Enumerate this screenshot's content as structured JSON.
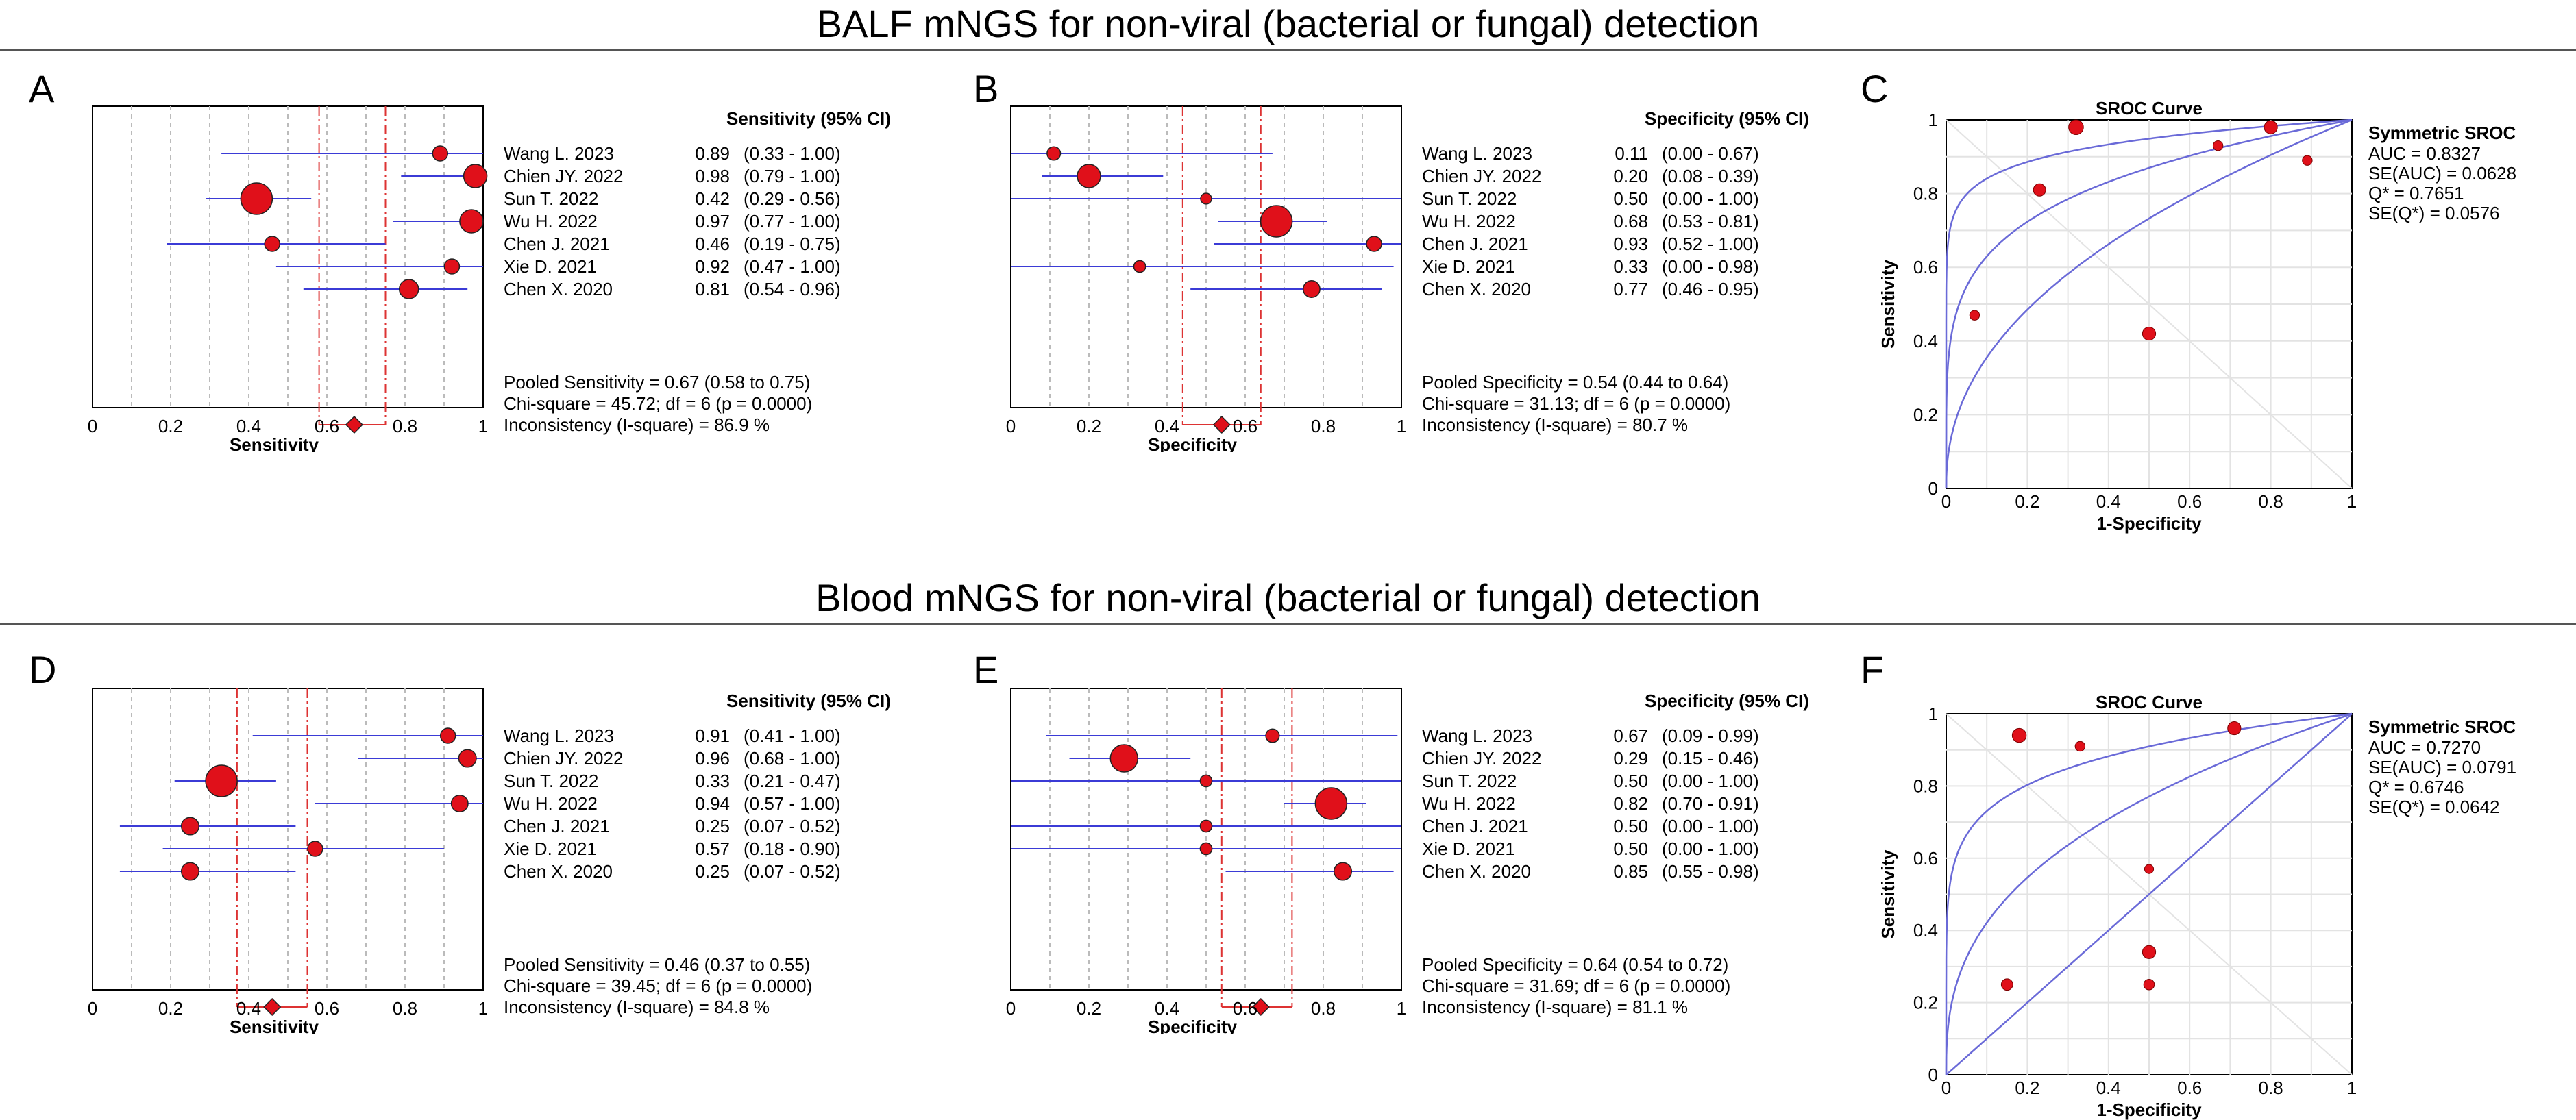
{
  "sections": [
    {
      "title": "BALF mNGS for non-viral (bacterial or fungal) detection"
    },
    {
      "title": "Blood mNGS for non-viral (bacterial or fungal) detection"
    }
  ],
  "chart_data": [
    {
      "letter": "A",
      "type": "forest",
      "metric": "Sensitivity",
      "column_header": "Sensitivity (95% CI)",
      "xlabel": "Sensitivity",
      "xlim": [
        0,
        1
      ],
      "x_ticks": [
        "0",
        "0.2",
        "0.4",
        "0.6",
        "0.8",
        "1"
      ],
      "studies": [
        {
          "name": "Wang L. 2023",
          "estimate": 0.89,
          "lo": 0.33,
          "hi": 1.0,
          "weight": 1,
          "value": "0.89",
          "ci": "(0.33 - 1.00)"
        },
        {
          "name": "Chien JY. 2022",
          "estimate": 0.98,
          "lo": 0.79,
          "hi": 1.0,
          "weight": 2,
          "value": "0.98",
          "ci": "(0.79 - 1.00)"
        },
        {
          "name": "Sun T. 2022",
          "estimate": 0.42,
          "lo": 0.29,
          "hi": 0.56,
          "weight": 3,
          "value": "0.42",
          "ci": "(0.29 - 0.56)"
        },
        {
          "name": "Wu H. 2022",
          "estimate": 0.97,
          "lo": 0.77,
          "hi": 1.0,
          "weight": 2,
          "value": "0.97",
          "ci": "(0.77 - 1.00)"
        },
        {
          "name": "Chen J. 2021",
          "estimate": 0.46,
          "lo": 0.19,
          "hi": 0.75,
          "weight": 1,
          "value": "0.46",
          "ci": "(0.19 - 0.75)"
        },
        {
          "name": "Xie D. 2021",
          "estimate": 0.92,
          "lo": 0.47,
          "hi": 1.0,
          "weight": 1,
          "value": "0.92",
          "ci": "(0.47 - 1.00)"
        },
        {
          "name": "Chen X. 2020",
          "estimate": 0.81,
          "lo": 0.54,
          "hi": 0.96,
          "weight": 1.5,
          "value": "0.81",
          "ci": "(0.54 - 0.96)"
        }
      ],
      "pooled": {
        "estimate": 0.67,
        "lo": 0.58,
        "hi": 0.75
      },
      "stats": [
        "Pooled Sensitivity = 0.67 (0.58 to 0.75)",
        "Chi-square = 45.72; df =  6 (p = 0.0000)",
        "Inconsistency (I-square) = 86.9 %"
      ]
    },
    {
      "letter": "B",
      "type": "forest",
      "metric": "Specificity",
      "column_header": "Specificity (95% CI)",
      "xlabel": "Specificity",
      "xlim": [
        0,
        1
      ],
      "x_ticks": [
        "0",
        "0.2",
        "0.4",
        "0.6",
        "0.8",
        "1"
      ],
      "studies": [
        {
          "name": "Wang L. 2023",
          "estimate": 0.11,
          "lo": 0.0,
          "hi": 0.67,
          "weight": 0.8,
          "value": "0.11",
          "ci": "(0.00 - 0.67)"
        },
        {
          "name": "Chien JY. 2022",
          "estimate": 0.2,
          "lo": 0.08,
          "hi": 0.39,
          "weight": 2,
          "value": "0.20",
          "ci": "(0.08 - 0.39)"
        },
        {
          "name": "Sun T. 2022",
          "estimate": 0.5,
          "lo": 0.0,
          "hi": 1.0,
          "weight": 0.5,
          "value": "0.50",
          "ci": "(0.00 - 1.00)"
        },
        {
          "name": "Wu H. 2022",
          "estimate": 0.68,
          "lo": 0.53,
          "hi": 0.81,
          "weight": 3,
          "value": "0.68",
          "ci": "(0.53 - 0.81)"
        },
        {
          "name": "Chen J. 2021",
          "estimate": 0.93,
          "lo": 0.52,
          "hi": 1.0,
          "weight": 1,
          "value": "0.93",
          "ci": "(0.52 - 1.00)"
        },
        {
          "name": "Xie D. 2021",
          "estimate": 0.33,
          "lo": 0.0,
          "hi": 0.98,
          "weight": 0.6,
          "value": "0.33",
          "ci": "(0.00 - 0.98)"
        },
        {
          "name": "Chen X. 2020",
          "estimate": 0.77,
          "lo": 0.46,
          "hi": 0.95,
          "weight": 1.2,
          "value": "0.77",
          "ci": "(0.46 - 0.95)"
        }
      ],
      "pooled": {
        "estimate": 0.54,
        "lo": 0.44,
        "hi": 0.64
      },
      "stats": [
        "Pooled Specificity = 0.54 (0.44 to 0.64)",
        "Chi-square = 31.13; df =  6 (p = 0.0000)",
        "Inconsistency (I-square) = 80.7 %"
      ]
    },
    {
      "letter": "C",
      "type": "sroc",
      "title": "SROC Curve",
      "xlabel": "1-Specificity",
      "ylabel": "Sensitivity",
      "xlim": [
        0,
        1
      ],
      "ylim": [
        0,
        1
      ],
      "x_ticks": [
        "0",
        "0.2",
        "0.4",
        "0.6",
        "0.8",
        "1"
      ],
      "y_ticks": [
        "0",
        "0.2",
        "0.4",
        "0.6",
        "0.8",
        "1"
      ],
      "curves": {
        "center_auc": 0.8327,
        "lower_auc": 0.69,
        "upper_auc": 0.93
      },
      "points": [
        {
          "x": 0.32,
          "y": 0.98,
          "size": 1.3
        },
        {
          "x": 0.8,
          "y": 0.98,
          "size": 1.1
        },
        {
          "x": 0.67,
          "y": 0.93,
          "size": 0.7
        },
        {
          "x": 0.89,
          "y": 0.89,
          "size": 0.7
        },
        {
          "x": 0.23,
          "y": 0.81,
          "size": 1.0
        },
        {
          "x": 0.07,
          "y": 0.47,
          "size": 0.7
        },
        {
          "x": 0.5,
          "y": 0.42,
          "size": 1.1
        }
      ],
      "legend_title": "Symmetric SROC",
      "legend_lines": [
        "AUC = 0.8327",
        "SE(AUC) = 0.0628",
        "Q* = 0.7651",
        "SE(Q*) = 0.0576"
      ]
    },
    {
      "letter": "D",
      "type": "forest",
      "metric": "Sensitivity",
      "column_header": "Sensitivity (95% CI)",
      "xlabel": "Sensitivity",
      "xlim": [
        0,
        1
      ],
      "x_ticks": [
        "0",
        "0.2",
        "0.4",
        "0.6",
        "0.8",
        "1"
      ],
      "studies": [
        {
          "name": "Wang L. 2023",
          "estimate": 0.91,
          "lo": 0.41,
          "hi": 1.0,
          "weight": 1,
          "value": "0.91",
          "ci": "(0.41 - 1.00)"
        },
        {
          "name": "Chien JY. 2022",
          "estimate": 0.96,
          "lo": 0.68,
          "hi": 1.0,
          "weight": 1.3,
          "value": "0.96",
          "ci": "(0.68 - 1.00)"
        },
        {
          "name": "Sun T. 2022",
          "estimate": 0.33,
          "lo": 0.21,
          "hi": 0.47,
          "weight": 3,
          "value": "0.33",
          "ci": "(0.21 - 0.47)"
        },
        {
          "name": "Wu H. 2022",
          "estimate": 0.94,
          "lo": 0.57,
          "hi": 1.0,
          "weight": 1.2,
          "value": "0.94",
          "ci": "(0.57 - 1.00)"
        },
        {
          "name": "Chen J. 2021",
          "estimate": 0.25,
          "lo": 0.07,
          "hi": 0.52,
          "weight": 1.3,
          "value": "0.25",
          "ci": "(0.07 - 0.52)"
        },
        {
          "name": "Xie D. 2021",
          "estimate": 0.57,
          "lo": 0.18,
          "hi": 0.9,
          "weight": 1,
          "value": "0.57",
          "ci": "(0.18 - 0.90)"
        },
        {
          "name": "Chen X. 2020",
          "estimate": 0.25,
          "lo": 0.07,
          "hi": 0.52,
          "weight": 1.3,
          "value": "0.25",
          "ci": "(0.07 - 0.52)"
        }
      ],
      "pooled": {
        "estimate": 0.46,
        "lo": 0.37,
        "hi": 0.55
      },
      "stats": [
        "Pooled Sensitivity = 0.46 (0.37 to 0.55)",
        "Chi-square = 39.45; df =  6 (p = 0.0000)",
        "Inconsistency (I-square) = 84.8 %"
      ]
    },
    {
      "letter": "E",
      "type": "forest",
      "metric": "Specificity",
      "column_header": "Specificity (95% CI)",
      "xlabel": "Specificity",
      "xlim": [
        0,
        1
      ],
      "x_ticks": [
        "0",
        "0.2",
        "0.4",
        "0.6",
        "0.8",
        "1"
      ],
      "studies": [
        {
          "name": "Wang L. 2023",
          "estimate": 0.67,
          "lo": 0.09,
          "hi": 0.99,
          "weight": 0.8,
          "value": "0.67",
          "ci": "(0.09 - 0.99)"
        },
        {
          "name": "Chien JY. 2022",
          "estimate": 0.29,
          "lo": 0.15,
          "hi": 0.46,
          "weight": 2.5,
          "value": "0.29",
          "ci": "(0.15 - 0.46)"
        },
        {
          "name": "Sun T. 2022",
          "estimate": 0.5,
          "lo": 0.0,
          "hi": 1.0,
          "weight": 0.6,
          "value": "0.50",
          "ci": "(0.00 - 1.00)"
        },
        {
          "name": "Wu H. 2022",
          "estimate": 0.82,
          "lo": 0.7,
          "hi": 0.91,
          "weight": 3,
          "value": "0.82",
          "ci": "(0.70 - 0.91)"
        },
        {
          "name": "Chen J. 2021",
          "estimate": 0.5,
          "lo": 0.0,
          "hi": 1.0,
          "weight": 0.6,
          "value": "0.50",
          "ci": "(0.00 - 1.00)"
        },
        {
          "name": "Xie D. 2021",
          "estimate": 0.5,
          "lo": 0.0,
          "hi": 1.0,
          "weight": 0.6,
          "value": "0.50",
          "ci": "(0.00 - 1.00)"
        },
        {
          "name": "Chen X. 2020",
          "estimate": 0.85,
          "lo": 0.55,
          "hi": 0.98,
          "weight": 1.3,
          "value": "0.85",
          "ci": "(0.55 - 0.98)"
        }
      ],
      "pooled": {
        "estimate": 0.64,
        "lo": 0.54,
        "hi": 0.72
      },
      "stats": [
        "Pooled Specificity = 0.64 (0.54 to 0.72)",
        "Chi-square = 31.69; df =  6 (p = 0.0000)",
        "Inconsistency (I-square) = 81.1 %"
      ]
    },
    {
      "letter": "F",
      "type": "sroc",
      "title": "SROC Curve",
      "xlabel": "1-Specificity",
      "ylabel": "Sensitivity",
      "xlim": [
        0,
        1
      ],
      "ylim": [
        0,
        1
      ],
      "x_ticks": [
        "0",
        "0.2",
        "0.4",
        "0.6",
        "0.8",
        "1"
      ],
      "y_ticks": [
        "0",
        "0.2",
        "0.4",
        "0.6",
        "0.8",
        "1"
      ],
      "curves": {
        "center_auc": 0.727,
        "lower_auc": 0.5,
        "upper_auc": 0.88
      },
      "points": [
        {
          "x": 0.18,
          "y": 0.94,
          "size": 1.2
        },
        {
          "x": 0.33,
          "y": 0.91,
          "size": 0.7
        },
        {
          "x": 0.71,
          "y": 0.96,
          "size": 1.1
        },
        {
          "x": 0.5,
          "y": 0.57,
          "size": 0.6
        },
        {
          "x": 0.5,
          "y": 0.34,
          "size": 1.1
        },
        {
          "x": 0.5,
          "y": 0.25,
          "size": 0.8
        },
        {
          "x": 0.15,
          "y": 0.25,
          "size": 0.9
        }
      ],
      "legend_title": "Symmetric SROC",
      "legend_lines": [
        "AUC = 0.7270",
        "SE(AUC) = 0.0791",
        "Q* = 0.6746",
        "SE(Q*) = 0.0642"
      ]
    }
  ]
}
